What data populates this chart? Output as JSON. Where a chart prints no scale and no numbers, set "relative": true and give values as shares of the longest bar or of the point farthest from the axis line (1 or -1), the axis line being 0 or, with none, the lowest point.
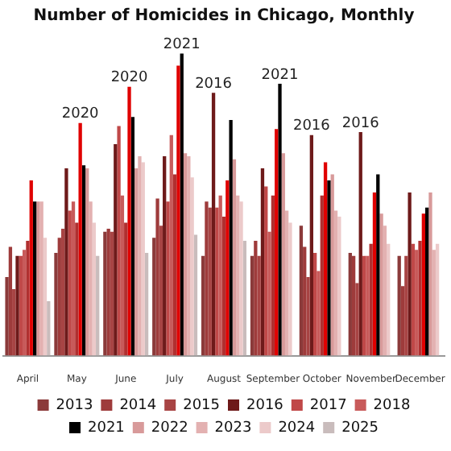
{
  "chart_data": {
    "type": "bar",
    "title": "Number of Homicides in Chicago, Monthly",
    "relative": true,
    "categories": [
      "April",
      "May",
      "June",
      "July",
      "August",
      "September",
      "October",
      "November",
      "December"
    ],
    "series": [
      {
        "name": "2013",
        "color": "#8b3a3a",
        "values": [
          0.26,
          0.34,
          0.41,
          0.39,
          0.33,
          0.33,
          0.43,
          0.34,
          0.33
        ]
      },
      {
        "name": "2014",
        "color": "#9e3b3b",
        "values": [
          0.36,
          0.39,
          0.42,
          0.52,
          0.51,
          0.38,
          0.36,
          0.33,
          0.23
        ]
      },
      {
        "name": "2015",
        "color": "#a84444",
        "values": [
          0.22,
          0.42,
          0.41,
          0.43,
          0.49,
          0.33,
          0.26,
          0.24,
          0.33
        ]
      },
      {
        "name": "2016",
        "color": "#6e1a1a",
        "values": [
          0.33,
          0.62,
          0.7,
          0.66,
          0.87,
          0.62,
          0.73,
          0.74,
          0.54
        ]
      },
      {
        "name": "2017",
        "color": "#c04848",
        "values": [
          0.33,
          0.48,
          0.76,
          0.51,
          0.49,
          0.56,
          0.34,
          0.33,
          0.37
        ]
      },
      {
        "name": "2018",
        "color": "#c85a5a",
        "values": [
          0.35,
          0.51,
          0.53,
          0.73,
          0.53,
          0.41,
          0.28,
          0.33,
          0.35
        ]
      },
      {
        "color": "#b03030",
        "values": [
          0.38,
          0.44,
          0.44,
          0.6,
          0.46,
          0.53,
          0.53,
          0.37,
          0.38
        ]
      },
      {
        "color": "#e00000",
        "values": [
          0.58,
          0.77,
          0.89,
          0.96,
          0.58,
          0.75,
          0.64,
          0.54,
          0.47
        ]
      },
      {
        "name": "2021",
        "color": "#000000",
        "values": [
          0.51,
          0.63,
          0.79,
          1,
          0.78,
          0.9,
          0.58,
          0.6,
          0.49
        ]
      },
      {
        "name": "2022",
        "color": "#d89a9a",
        "values": [
          0.51,
          0.62,
          0.62,
          0.67,
          0.65,
          0.67,
          0.6,
          0.47,
          0.54
        ]
      },
      {
        "name": "2023",
        "color": "#e3b1b1",
        "values": [
          0.51,
          0.51,
          0.66,
          0.66,
          0.53,
          0.48,
          0.48,
          0.43,
          0.35
        ]
      },
      {
        "name": "2024",
        "color": "#eccaca",
        "values": [
          0.39,
          0.44,
          0.64,
          0.59,
          0.51,
          0.44,
          0.46,
          0.37,
          0.37
        ]
      },
      {
        "name": "2025",
        "color": "#c9bcbc",
        "values": [
          0.18,
          0.33,
          0.34,
          0.4,
          0.38,
          null,
          null,
          null,
          null
        ]
      }
    ],
    "annotations": [
      {
        "text": "2020",
        "x": "May",
        "y": 0.77
      },
      {
        "text": "2020",
        "x": "June",
        "y": 0.89
      },
      {
        "text": "2021",
        "x": "July",
        "y": 1
      },
      "2016",
      {
        "text": "2021",
        "x": "September",
        "y": 0.9
      },
      "2016",
      "2016"
    ],
    "legend": "bottom"
  }
}
